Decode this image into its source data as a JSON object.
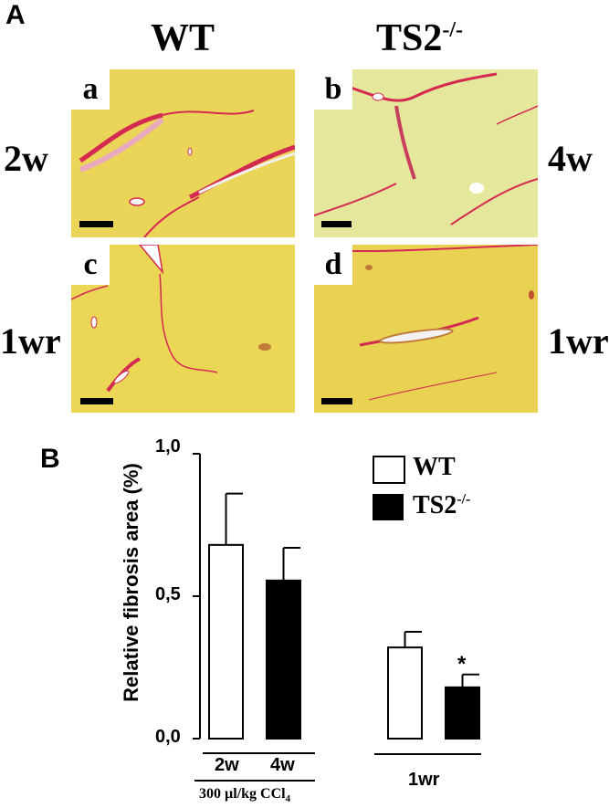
{
  "figure": {
    "panel_a_label": "A",
    "panel_b_label": "B",
    "columns": [
      {
        "title": "WT",
        "sup": ""
      },
      {
        "title": "TS2",
        "sup": "-/-"
      }
    ],
    "panels": [
      {
        "letter": "a",
        "timepoint": "2w"
      },
      {
        "letter": "b",
        "timepoint": "4w"
      },
      {
        "letter": "c",
        "timepoint": "1wr"
      },
      {
        "letter": "d",
        "timepoint": "1wr"
      }
    ],
    "colors": {
      "tissue": "#e8d24a",
      "tissue_light": "#dfe28a",
      "collagen": "#d42a52",
      "bar_wt": "#ffffff",
      "bar_ts2": "#000000"
    }
  },
  "chart_data": {
    "type": "bar",
    "ylabel": "Relative fibrosis area (%)",
    "ylim": [
      0,
      1.0
    ],
    "yticks": [
      "0,0",
      "0,5",
      "1,0"
    ],
    "bars": [
      {
        "label": "2w",
        "series": "WT",
        "value": 0.68,
        "error": 0.18
      },
      {
        "label": "4w",
        "series": "TS2-/-",
        "value": 0.555,
        "error": 0.115
      },
      {
        "label": "1wr",
        "series": "WT",
        "value": 0.32,
        "error": 0.055
      },
      {
        "label": "1wr",
        "series": "TS2-/-",
        "value": 0.18,
        "error": 0.045,
        "annotation": "*"
      }
    ],
    "legend": [
      {
        "name": "WT",
        "sup": "",
        "fill": "#ffffff"
      },
      {
        "name": "TS2",
        "sup": "-/-",
        "fill": "#000000"
      }
    ],
    "legend_position": "top-right",
    "group_labels": {
      "first": [
        "2w",
        "4w"
      ],
      "first_caption": "300 µl/kg CCl",
      "first_caption_sub": "4",
      "second": "1wr"
    }
  }
}
